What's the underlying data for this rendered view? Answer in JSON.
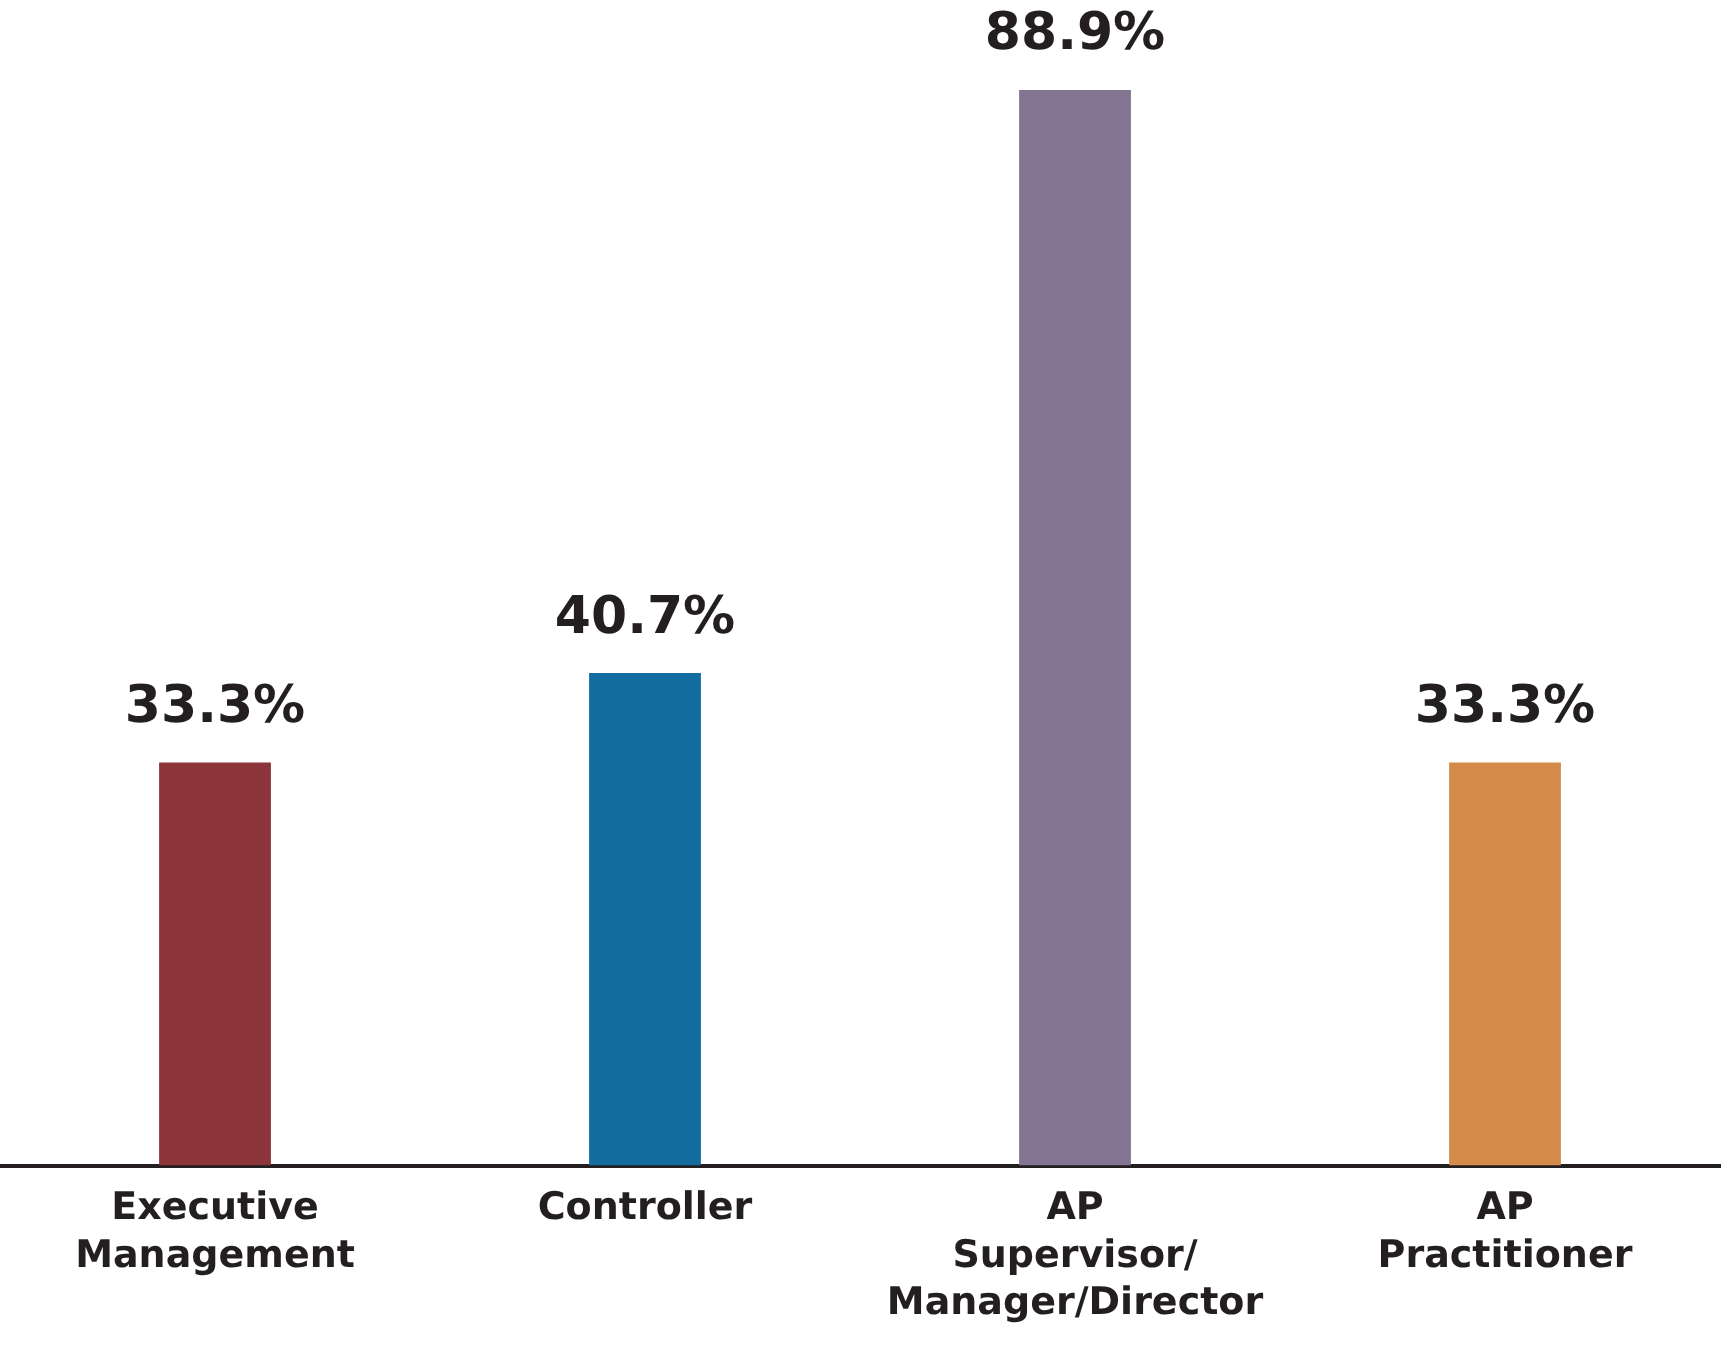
{
  "chart_data": {
    "type": "bar",
    "categories": [
      "Executive Management",
      "Controller",
      "AP Supervisor/Manager/Director",
      "AP Practitioner"
    ],
    "values": [
      33.3,
      40.7,
      88.9,
      33.3
    ],
    "colors": [
      "#8b3439",
      "#136c9f",
      "#837591",
      "#d58b49"
    ],
    "value_labels": [
      "33.3%",
      "40.7%",
      "88.9%",
      "33.3%"
    ],
    "grid": false,
    "legend": false
  }
}
